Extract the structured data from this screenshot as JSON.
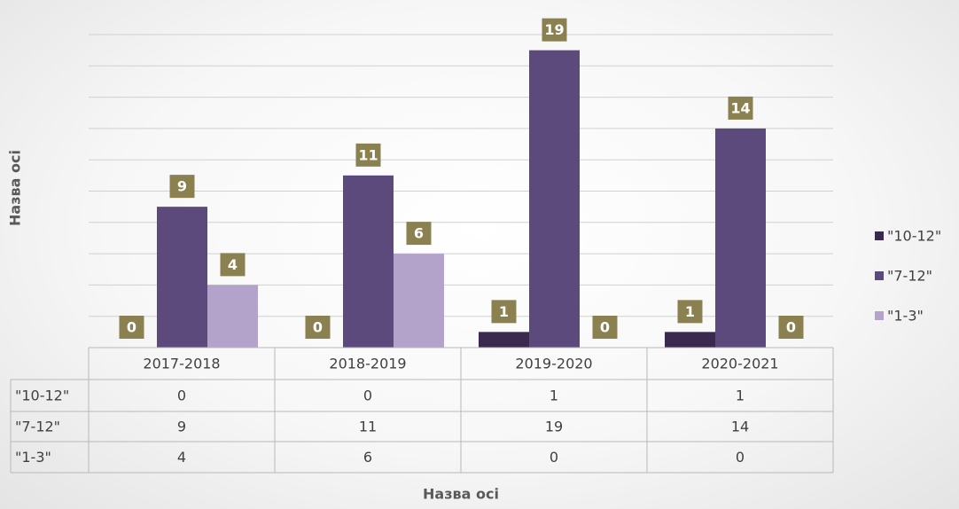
{
  "chart_data": {
    "type": "bar",
    "categories": [
      "2017-2018",
      "2018-2019",
      "2019-2020",
      "2020-2021"
    ],
    "series": [
      {
        "name": "\"10-12\"",
        "color": "#3b2a4f",
        "values": [
          0,
          0,
          1,
          1
        ]
      },
      {
        "name": "\"7-12\"",
        "color": "#5c4a7c",
        "values": [
          9,
          11,
          19,
          14
        ]
      },
      {
        "name": "\"1-3\"",
        "color": "#b3a3cb",
        "values": [
          4,
          6,
          0,
          0
        ]
      }
    ],
    "ylim": [
      0,
      20
    ],
    "yticks": [
      0,
      2,
      4,
      6,
      8,
      10,
      12,
      14,
      16,
      18,
      20
    ],
    "grid": true,
    "x_label": "Назва осі",
    "y_label": "Назва осі",
    "label_color": "#8b8150",
    "legend": "right",
    "data_table": true
  }
}
